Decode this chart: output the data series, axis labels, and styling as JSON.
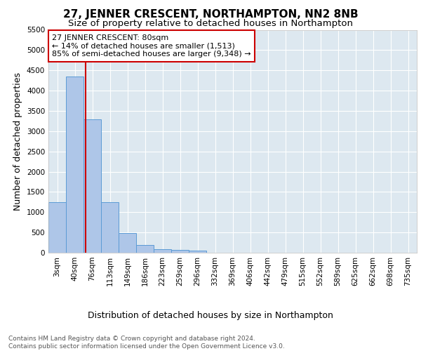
{
  "title": "27, JENNER CRESCENT, NORTHAMPTON, NN2 8NB",
  "subtitle": "Size of property relative to detached houses in Northampton",
  "xlabel": "Distribution of detached houses by size in Northampton",
  "ylabel": "Number of detached properties",
  "bar_color": "#aec6e8",
  "bar_edge_color": "#5b9bd5",
  "background_color": "#dde8f0",
  "grid_color": "#ffffff",
  "bin_labels": [
    "3sqm",
    "40sqm",
    "76sqm",
    "113sqm",
    "149sqm",
    "186sqm",
    "223sqm",
    "259sqm",
    "296sqm",
    "332sqm",
    "369sqm",
    "406sqm",
    "442sqm",
    "479sqm",
    "515sqm",
    "552sqm",
    "589sqm",
    "625sqm",
    "662sqm",
    "698sqm",
    "735sqm"
  ],
  "bar_heights": [
    1250,
    4350,
    3300,
    1250,
    480,
    190,
    90,
    70,
    50,
    0,
    0,
    0,
    0,
    0,
    0,
    0,
    0,
    0,
    0,
    0,
    0
  ],
  "ylim": [
    0,
    5500
  ],
  "yticks": [
    0,
    500,
    1000,
    1500,
    2000,
    2500,
    3000,
    3500,
    4000,
    4500,
    5000,
    5500
  ],
  "red_line_x": 1.6,
  "annotation_text": "27 JENNER CRESCENT: 80sqm\n← 14% of detached houses are smaller (1,513)\n85% of semi-detached houses are larger (9,348) →",
  "annotation_box_color": "#ffffff",
  "annotation_box_edge_color": "#cc0000",
  "footer_text": "Contains HM Land Registry data © Crown copyright and database right 2024.\nContains public sector information licensed under the Open Government Licence v3.0.",
  "title_fontsize": 11,
  "subtitle_fontsize": 9.5,
  "axis_label_fontsize": 9,
  "tick_fontsize": 7.5,
  "annotation_fontsize": 8,
  "footer_fontsize": 6.5
}
